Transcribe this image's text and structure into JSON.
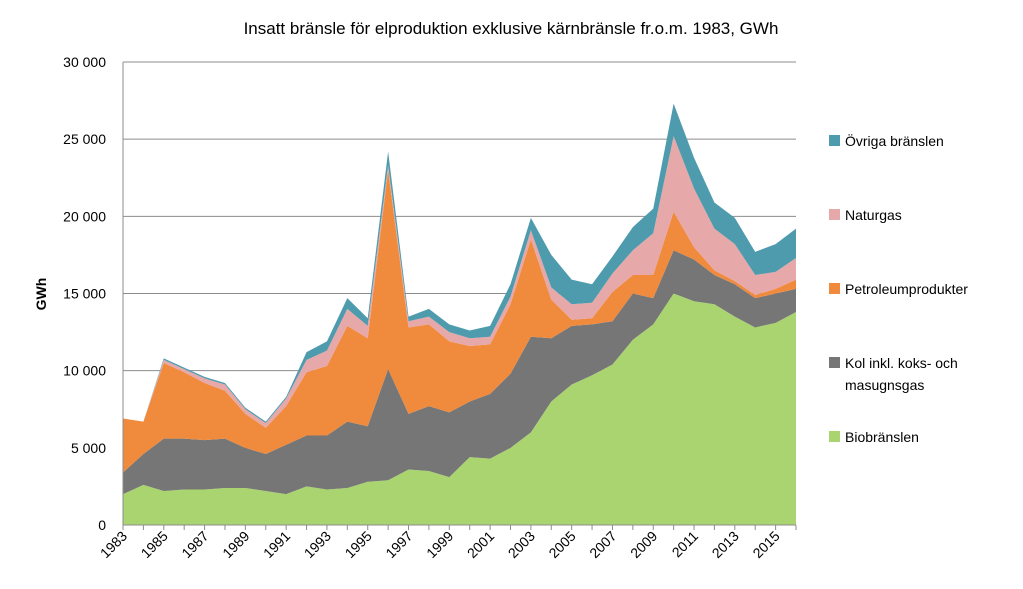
{
  "chart_data": {
    "type": "area",
    "stacked": true,
    "title": "Insatt bränsle för elproduktion exklusive kärnbränsle fr.o.m. 1983, GWh",
    "xlabel": "",
    "ylabel": "GWh",
    "ylim": [
      0,
      30000
    ],
    "y_ticks": [
      0,
      5000,
      10000,
      15000,
      20000,
      25000,
      30000
    ],
    "y_tick_labels": [
      "0",
      "5 000",
      "10 000",
      "15 000",
      "20 000",
      "25 000",
      "30 000"
    ],
    "x_tick_labels": [
      "1983",
      "1985",
      "1987",
      "1989",
      "1991",
      "1993",
      "1995",
      "1997",
      "1999",
      "2001",
      "2003",
      "2005",
      "2007",
      "2009",
      "2011",
      "2013",
      "2015"
    ],
    "grid": "horizontal",
    "legend_position": "right",
    "x": [
      1983,
      1984,
      1985,
      1986,
      1987,
      1988,
      1989,
      1990,
      1991,
      1992,
      1993,
      1994,
      1995,
      1996,
      1997,
      1998,
      1999,
      2000,
      2001,
      2002,
      2003,
      2004,
      2005,
      2006,
      2007,
      2008,
      2009,
      2010,
      2011,
      2012,
      2013,
      2014,
      2015,
      2016
    ],
    "series": [
      {
        "name": "Biobränslen",
        "color": "#a9d46f",
        "values": [
          2000,
          2600,
          2200,
          2300,
          2300,
          2400,
          2400,
          2200,
          2000,
          2500,
          2300,
          2400,
          2800,
          2900,
          3600,
          3500,
          3100,
          4400,
          4300,
          5000,
          6000,
          8000,
          9100,
          9700,
          10400,
          12000,
          13000,
          15000,
          14500,
          14300,
          13500,
          12800,
          13100,
          13800
        ]
      },
      {
        "name": "Kol inkl. koks- och masugnsgas",
        "color": "#767676",
        "values": [
          1400,
          2000,
          3400,
          3300,
          3200,
          3200,
          2600,
          2400,
          3200,
          3300,
          3500,
          4300,
          3600,
          7200,
          3600,
          4200,
          4200,
          3600,
          4200,
          4800,
          6200,
          4100,
          3800,
          3300,
          2800,
          3000,
          1700,
          2800,
          2700,
          1900,
          2100,
          1900,
          1900,
          1500
        ]
      },
      {
        "name": "Petroleumprodukter",
        "color": "#f08a3c",
        "values": [
          3500,
          2100,
          4900,
          4300,
          3700,
          3100,
          2200,
          1700,
          2500,
          4100,
          4500,
          6200,
          5700,
          12900,
          5600,
          5300,
          4600,
          3600,
          3200,
          4500,
          6300,
          2500,
          400,
          400,
          1900,
          1200,
          1500,
          2500,
          800,
          300,
          200,
          200,
          300,
          600
        ]
      },
      {
        "name": "Naturgas",
        "color": "#e6a8a8",
        "values": [
          0,
          0,
          200,
          200,
          300,
          400,
          300,
          300,
          500,
          800,
          1000,
          1100,
          800,
          300,
          400,
          500,
          600,
          500,
          500,
          500,
          600,
          800,
          1000,
          1000,
          1200,
          1600,
          2700,
          4900,
          3800,
          2700,
          2400,
          1300,
          1100,
          1400
        ]
      },
      {
        "name": "Övriga bränslen",
        "color": "#4f9bae",
        "values": [
          0,
          0,
          100,
          100,
          100,
          100,
          100,
          100,
          100,
          500,
          600,
          700,
          500,
          900,
          300,
          500,
          500,
          500,
          700,
          800,
          800,
          2100,
          1600,
          1200,
          1100,
          1500,
          1600,
          2100,
          2000,
          1700,
          1700,
          1500,
          1800,
          1900
        ]
      }
    ],
    "legend_order": [
      "Övriga bränslen",
      "Naturgas",
      "Petroleumprodukter",
      "Kol inkl. koks- och masugnsgas",
      "Biobränslen"
    ]
  }
}
